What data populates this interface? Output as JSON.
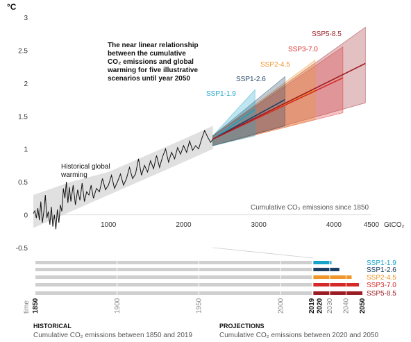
{
  "chart_data": [
    {
      "type": "area",
      "title": "",
      "ylabel": "°C",
      "xlabel": "GtCO₂",
      "xlim": [
        0,
        4500
      ],
      "ylim": [
        -0.5,
        3
      ],
      "xticks": [
        "1000",
        "2000",
        "3000",
        "4000",
        "4500"
      ],
      "yticks": [
        "-0.5",
        "0",
        "0.5",
        "1",
        "1.5",
        "2",
        "2.5",
        "3"
      ],
      "annotation_lines": [
        "The near linear relationship",
        "between the cumulative",
        "CO₂ emissions and global",
        "warming for five illustrative",
        "scenarios until year 2050"
      ],
      "historical_label": [
        "Historical global",
        "warming"
      ],
      "x_axis_note": "Cumulative CO₂ emissions since 1850",
      "historical_series": {
        "x": [
          0,
          20,
          40,
          60,
          80,
          100,
          120,
          140,
          160,
          180,
          200,
          220,
          240,
          260,
          280,
          300,
          320,
          340,
          360,
          380,
          400,
          420,
          440,
          460,
          480,
          500,
          530,
          560,
          590,
          620,
          650,
          680,
          710,
          740,
          770,
          800,
          840,
          880,
          920,
          960,
          1000,
          1040,
          1080,
          1120,
          1160,
          1200,
          1240,
          1280,
          1320,
          1360,
          1400,
          1440,
          1480,
          1520,
          1560,
          1600,
          1640,
          1680,
          1720,
          1760,
          1800,
          1840,
          1880,
          1920,
          1960,
          2000,
          2040,
          2080,
          2120,
          2160,
          2200,
          2240,
          2280,
          2320,
          2360,
          2390
        ],
        "y": [
          0.02,
          0.06,
          -0.05,
          0.1,
          -0.08,
          0.2,
          -0.12,
          0.05,
          0.3,
          -0.05,
          0.05,
          -0.15,
          0.12,
          -0.18,
          0.0,
          -0.22,
          0.08,
          -0.12,
          0.15,
          0.05,
          0.4,
          0.25,
          0.5,
          0.18,
          0.42,
          0.2,
          0.45,
          0.15,
          0.38,
          0.22,
          0.48,
          0.2,
          0.35,
          0.3,
          0.45,
          0.25,
          0.4,
          0.35,
          0.55,
          0.38,
          0.45,
          0.6,
          0.4,
          0.5,
          0.62,
          0.45,
          0.55,
          0.72,
          0.55,
          0.62,
          0.85,
          0.6,
          0.75,
          0.65,
          0.82,
          0.7,
          0.9,
          0.72,
          0.88,
          1.0,
          0.8,
          0.95,
          0.85,
          1.02,
          0.92,
          1.05,
          0.95,
          1.12,
          0.98,
          1.05,
          1.0,
          1.15,
          1.28,
          1.18,
          1.1,
          1.15
        ]
      },
      "historical_band": {
        "x": [
          0,
          500,
          1000,
          1500,
          2000,
          2390
        ],
        "lower": [
          -0.2,
          0.05,
          0.3,
          0.55,
          0.8,
          1.0
        ],
        "upper": [
          0.3,
          0.5,
          0.65,
          0.9,
          1.15,
          1.35
        ]
      },
      "series": [
        {
          "name": "SSP1-1.9",
          "color": "#1aa3c8",
          "x": [
            2390,
            2950
          ],
          "y": [
            1.15,
            1.6
          ],
          "band_x": [
            2390,
            2950
          ],
          "band_low": [
            1.05,
            1.2
          ],
          "band_high": [
            1.2,
            1.9
          ]
        },
        {
          "name": "SSP1-2.6",
          "color": "#1d3f63",
          "x": [
            2390,
            3350
          ],
          "y": [
            1.15,
            1.75
          ],
          "band_x": [
            2390,
            3350
          ],
          "band_low": [
            1.05,
            1.35
          ],
          "band_high": [
            1.2,
            2.1
          ]
        },
        {
          "name": "SSP2-4.5",
          "color": "#f0962a",
          "x": [
            2390,
            3750
          ],
          "y": [
            1.15,
            1.9
          ],
          "band_x": [
            2390,
            3750
          ],
          "band_low": [
            1.05,
            1.45
          ],
          "band_high": [
            1.2,
            2.35
          ]
        },
        {
          "name": "SSP3-7.0",
          "color": "#d62a2a",
          "x": [
            2390,
            4120
          ],
          "y": [
            1.15,
            2.08
          ],
          "band_x": [
            2390,
            4120
          ],
          "band_low": [
            1.05,
            1.55
          ],
          "band_high": [
            1.2,
            2.55
          ]
        },
        {
          "name": "SSP5-8.5",
          "color": "#9b1c24",
          "x": [
            2390,
            4420
          ],
          "y": [
            1.15,
            2.3
          ],
          "band_x": [
            2390,
            4420
          ],
          "band_low": [
            1.05,
            1.7
          ],
          "band_high": [
            1.2,
            2.85
          ]
        }
      ]
    },
    {
      "type": "bar",
      "xlim": [
        1850,
        2050
      ],
      "time_label": "time",
      "year_ticks": [
        "1850",
        "1900",
        "1950",
        "2000",
        "2019",
        "2020",
        "2030",
        "2040",
        "2050"
      ],
      "historical_end_year": 2019,
      "historical_color": "#cfcfcf",
      "series": [
        {
          "name": "SSP1-1.9",
          "color": "#1aa3c8",
          "end_fraction": 0.37
        },
        {
          "name": "SSP1-2.6",
          "color": "#1d3f63",
          "end_fraction": 0.53
        },
        {
          "name": "SSP2-4.5",
          "color": "#f0962a",
          "end_fraction": 0.78
        },
        {
          "name": "SSP3-7.0",
          "color": "#d62a2a",
          "end_fraction": 0.93
        },
        {
          "name": "SSP5-8.5",
          "color": "#9b1c24",
          "end_fraction": 1.0
        }
      ],
      "historical_heading": "HISTORICAL",
      "historical_caption": "Cumulative CO₂ emissions between 1850 and 2019",
      "projections_heading": "PROJECTIONS",
      "projections_caption": "Cumulative CO₂ emissions between 2020 and 2050"
    }
  ]
}
